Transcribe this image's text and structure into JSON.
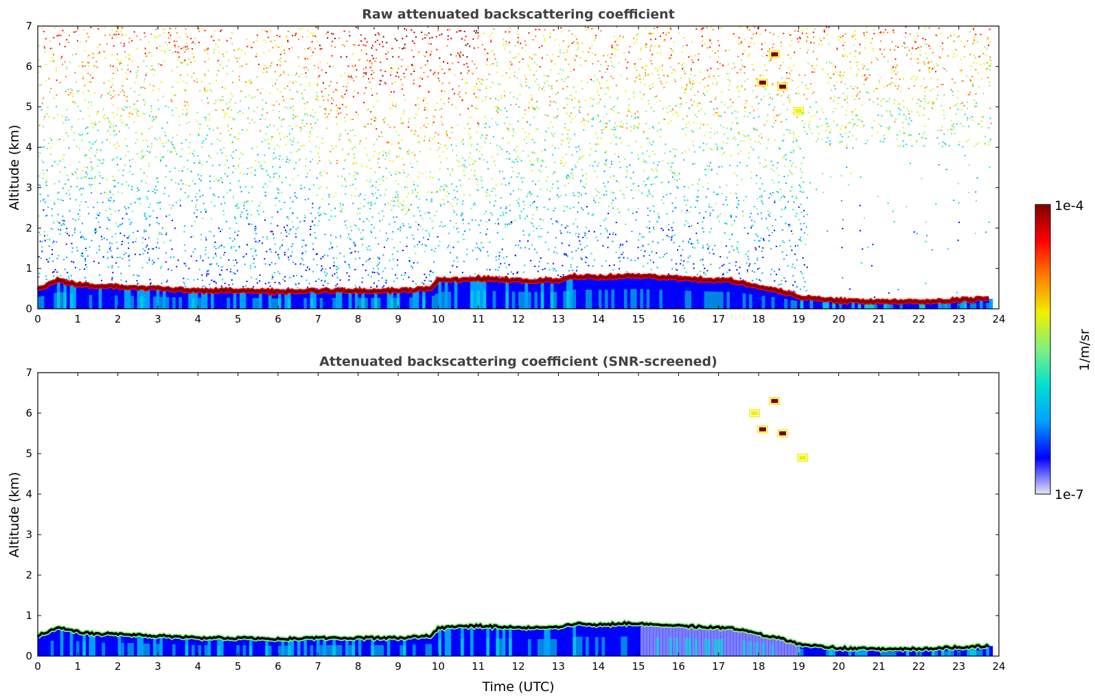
{
  "chart_data": [
    {
      "type": "heatmap",
      "title": "Raw attenuated backscattering coefficient",
      "xlabel": "",
      "ylabel": "Altitude (km)",
      "xlim": [
        0,
        24
      ],
      "ylim": [
        0,
        7
      ],
      "xticks": [
        "0",
        "1",
        "2",
        "3",
        "4",
        "5",
        "6",
        "7",
        "8",
        "9",
        "10",
        "11",
        "12",
        "13",
        "14",
        "15",
        "16",
        "17",
        "18",
        "19",
        "20",
        "21",
        "22",
        "23",
        "24"
      ],
      "yticks": [
        "0",
        "1",
        "2",
        "3",
        "4",
        "5",
        "6",
        "7"
      ],
      "grid": false,
      "cloud_layer_km": {
        "time_utc": [
          0,
          0.5,
          1,
          1.5,
          2,
          3,
          4,
          5,
          6,
          7,
          8,
          9,
          9.8,
          10,
          10.5,
          11,
          12,
          13,
          13.4,
          14,
          15,
          15.2,
          17,
          17.3,
          18,
          18.5,
          19,
          19.5,
          20,
          21,
          22,
          23,
          23.8
        ],
        "altitude_km": [
          0.5,
          0.7,
          0.6,
          0.55,
          0.55,
          0.5,
          0.45,
          0.45,
          0.42,
          0.45,
          0.45,
          0.45,
          0.5,
          0.7,
          0.72,
          0.75,
          0.7,
          0.7,
          0.8,
          0.78,
          0.82,
          0.8,
          0.7,
          0.7,
          0.55,
          0.45,
          0.3,
          0.25,
          0.2,
          0.18,
          0.18,
          0.22,
          0.25
        ]
      },
      "elevated_features": [
        {
          "time_utc": 18.1,
          "altitude_km": 5.6
        },
        {
          "time_utc": 18.6,
          "altitude_km": 5.5
        },
        {
          "time_utc": 18.4,
          "altitude_km": 6.3
        },
        {
          "time_utc": 19.0,
          "altitude_km": 4.9
        }
      ]
    },
    {
      "type": "heatmap",
      "title": "Attenuated backscattering coefficient (SNR-screened)",
      "xlabel": "Time (UTC)",
      "ylabel": "Altitude (km)",
      "xlim": [
        0,
        24
      ],
      "ylim": [
        0,
        7
      ],
      "xticks": [
        "0",
        "1",
        "2",
        "3",
        "4",
        "5",
        "6",
        "7",
        "8",
        "9",
        "10",
        "11",
        "12",
        "13",
        "14",
        "15",
        "16",
        "17",
        "18",
        "19",
        "20",
        "21",
        "22",
        "23",
        "24"
      ],
      "yticks": [
        "0",
        "1",
        "2",
        "3",
        "4",
        "5",
        "6",
        "7"
      ],
      "grid": false,
      "elevated_features": [
        {
          "time_utc": 18.1,
          "altitude_km": 5.6
        },
        {
          "time_utc": 18.6,
          "altitude_km": 5.5
        },
        {
          "time_utc": 18.4,
          "altitude_km": 6.3
        },
        {
          "time_utc": 17.9,
          "altitude_km": 6.0
        },
        {
          "time_utc": 19.1,
          "altitude_km": 4.9
        }
      ]
    }
  ],
  "colorbar": {
    "label": "1/m/sr",
    "max_label": "1e-4",
    "min_label": "1e-7",
    "scale": "log",
    "range": [
      1e-07,
      0.0001
    ],
    "colormap": [
      "#e6e6f6",
      "#0000ff",
      "#00a0ff",
      "#00e0d0",
      "#80f080",
      "#f0f000",
      "#ff8000",
      "#ff0000",
      "#800000"
    ]
  }
}
